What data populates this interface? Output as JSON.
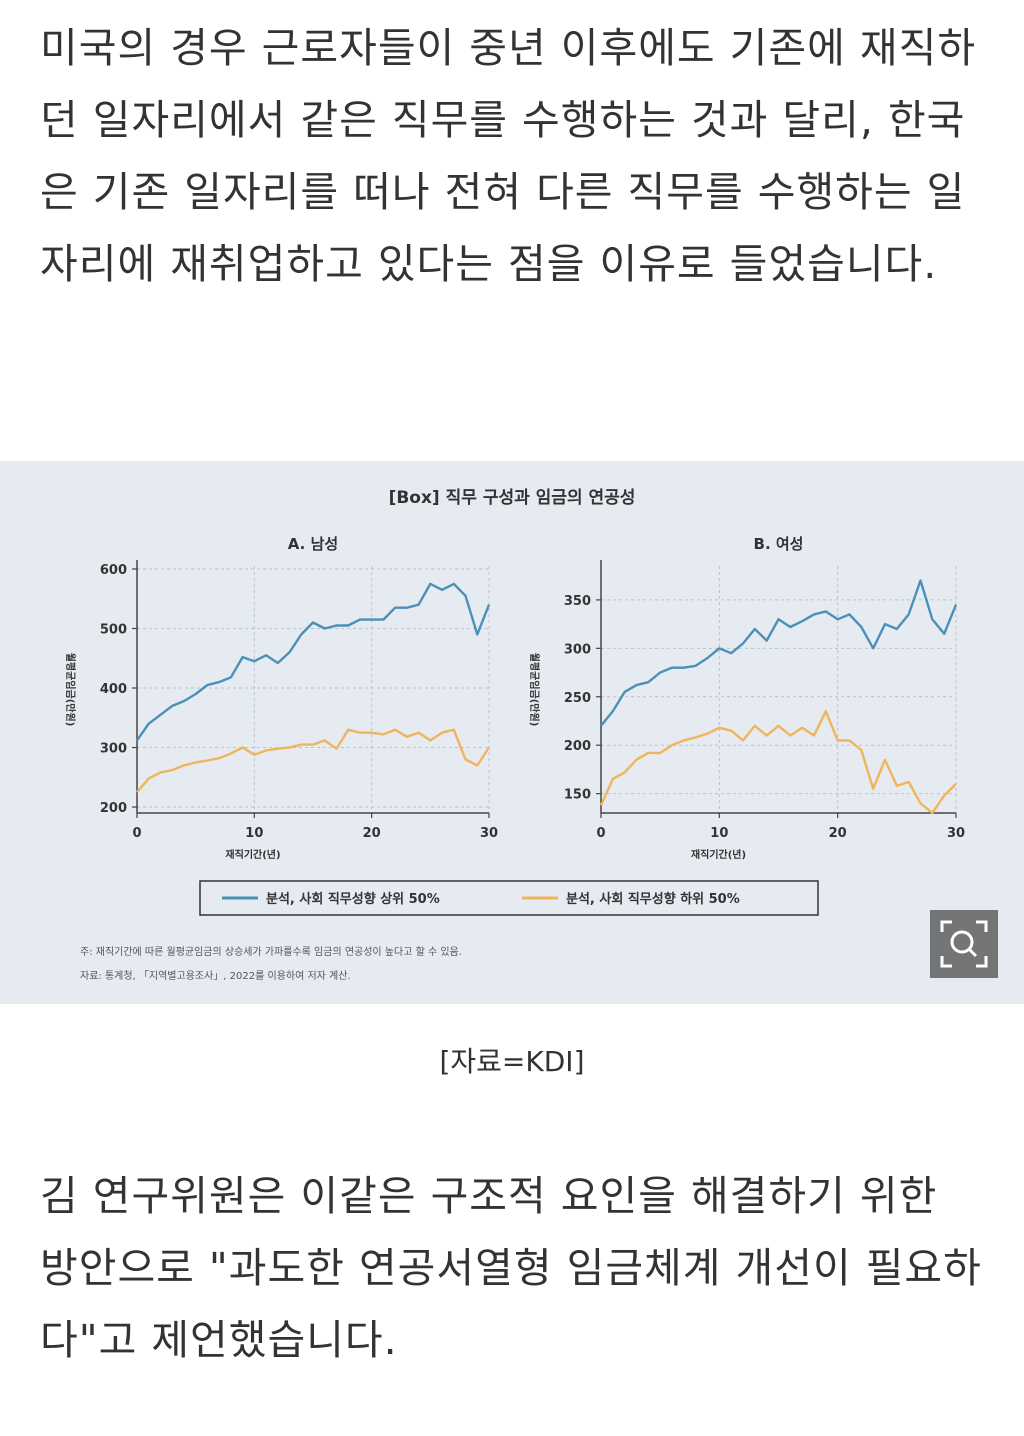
{
  "article": {
    "paragraph_1": "미국의 경우 근로자들이 중년 이후에도 기존에 재직하던 일자리에서 같은 직무를 수행하는 것과 달리, 한국은 기존 일자리를 떠나 전혀 다른 직무를 수행하는 일자리에 재취업하고 있다는 점을 이유로 들었습니다.",
    "caption": "[자료=KDI]",
    "paragraph_2": "김 연구위원은 이같은 구조적 요인을 해결하기 위한 방안으로 \"과도한 연공서열형 임금체계 개선이 필요하다\"고 제언했습니다."
  },
  "figure": {
    "title": "[Box] 직무 구성과 임금의 연공성",
    "legend": [
      "분석, 사회 직무성향 상위 50%",
      "분석, 사회 직무성향 하위 50%"
    ],
    "note": "주: 재직기간에 따른 월평균임금의 상승세가 가파를수록 임금의 연공성이 높다고 할 수 있음.",
    "source": "자료: 통계청, 「지역별고용조사」, 2022를 이용하여 저자 계산.",
    "colors": {
      "upper": "#4a90b8",
      "lower": "#f0b45c",
      "background": "#e6ebf2"
    }
  },
  "zoom_button": {
    "icon": "zoom-magnifier-icon"
  },
  "chart_data": [
    {
      "type": "line",
      "title": "A. 남성",
      "xlabel": "재직기간(년)",
      "ylabel": "월평균임금(만원)",
      "xlim": [
        0,
        30
      ],
      "ylim": [
        190,
        605
      ],
      "xticks": [
        0,
        10,
        20,
        30
      ],
      "yticks": [
        200,
        300,
        400,
        500,
        600
      ],
      "grid": true,
      "x": [
        0,
        1,
        2,
        3,
        4,
        5,
        6,
        7,
        8,
        9,
        10,
        11,
        12,
        13,
        14,
        15,
        16,
        17,
        18,
        19,
        20,
        21,
        22,
        23,
        24,
        25,
        26,
        27,
        28,
        29,
        30
      ],
      "series": [
        {
          "name": "분석, 사회 직무성향 상위 50%",
          "values": [
            312,
            340,
            355,
            370,
            378,
            390,
            405,
            410,
            418,
            452,
            445,
            455,
            442,
            460,
            490,
            510,
            500,
            505,
            505,
            515,
            515,
            515,
            535,
            535,
            540,
            575,
            565,
            575,
            555,
            490,
            540
          ]
        },
        {
          "name": "분석, 사회 직무성향 하위 50%",
          "values": [
            225,
            248,
            258,
            262,
            270,
            275,
            278,
            282,
            290,
            300,
            288,
            295,
            298,
            300,
            305,
            305,
            312,
            298,
            330,
            325,
            325,
            322,
            330,
            318,
            325,
            312,
            325,
            330,
            280,
            270,
            300
          ]
        }
      ]
    },
    {
      "type": "line",
      "title": "B. 여성",
      "xlabel": "재직기간(년)",
      "ylabel": "월평균임금(만원)",
      "xlim": [
        0,
        30
      ],
      "ylim": [
        130,
        385
      ],
      "xticks": [
        0,
        10,
        20,
        30
      ],
      "yticks": [
        150,
        200,
        250,
        300,
        350
      ],
      "grid": true,
      "x": [
        0,
        1,
        2,
        3,
        4,
        5,
        6,
        7,
        8,
        9,
        10,
        11,
        12,
        13,
        14,
        15,
        16,
        17,
        18,
        19,
        20,
        21,
        22,
        23,
        24,
        25,
        26,
        27,
        28,
        29,
        30
      ],
      "series": [
        {
          "name": "분석, 사회 직무성향 상위 50%",
          "values": [
            220,
            235,
            255,
            262,
            265,
            275,
            280,
            280,
            282,
            290,
            300,
            295,
            305,
            320,
            308,
            330,
            322,
            328,
            335,
            338,
            330,
            335,
            322,
            300,
            325,
            320,
            335,
            370,
            330,
            315,
            345
          ]
        },
        {
          "name": "분석, 사회 직무성향 하위 50%",
          "values": [
            138,
            165,
            172,
            185,
            192,
            192,
            200,
            205,
            208,
            212,
            218,
            215,
            205,
            220,
            210,
            220,
            210,
            218,
            210,
            235,
            205,
            205,
            195,
            155,
            185,
            158,
            162,
            140,
            130,
            148,
            160
          ]
        }
      ]
    }
  ]
}
